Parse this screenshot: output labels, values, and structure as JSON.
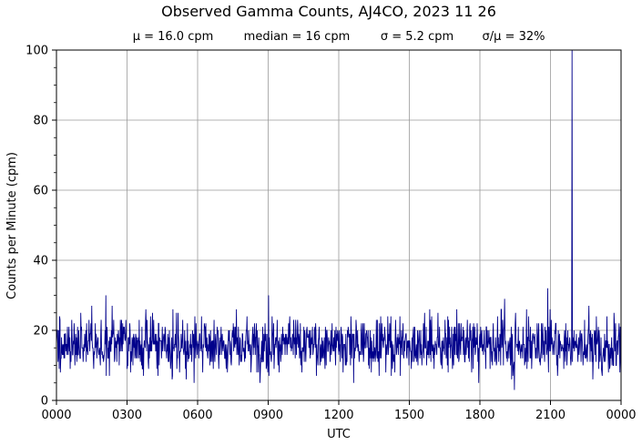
{
  "chart_data": {
    "type": "line",
    "title": "Observed Gamma Counts, AJ4CO, 2023 11 26",
    "subtitle": {
      "mean": "μ = 16.0 cpm",
      "median": "median = 16 cpm",
      "sigma": "σ = 5.2 cpm",
      "cv": "σ/μ = 32%"
    },
    "xlabel": "UTC",
    "ylabel": "Counts per Minute (cpm)",
    "ylim": [
      0,
      100
    ],
    "xlim_minutes": [
      0,
      1440
    ],
    "x_ticks": [
      {
        "minute": 0,
        "label": "0000"
      },
      {
        "minute": 180,
        "label": "0300"
      },
      {
        "minute": 360,
        "label": "0600"
      },
      {
        "minute": 540,
        "label": "0900"
      },
      {
        "minute": 720,
        "label": "1200"
      },
      {
        "minute": 900,
        "label": "1500"
      },
      {
        "minute": 1080,
        "label": "1800"
      },
      {
        "minute": 1260,
        "label": "2100"
      },
      {
        "minute": 1440,
        "label": "0000"
      }
    ],
    "y_ticks": [
      {
        "value": 0,
        "label": "0"
      },
      {
        "value": 20,
        "label": "20"
      },
      {
        "value": 40,
        "label": "40"
      },
      {
        "value": 60,
        "label": "60"
      },
      {
        "value": 80,
        "label": "80"
      },
      {
        "value": 100,
        "label": "100"
      }
    ],
    "y_minor_step": 5,
    "grid": true,
    "series": [
      {
        "color": "#00008b",
        "sampling": "1 value per minute, 1440 values",
        "values": []
      }
    ],
    "notable_points": [
      {
        "minute": 1253,
        "value": 32
      },
      {
        "minute": 1315,
        "value": 100
      },
      {
        "minute": 126,
        "value": 30
      },
      {
        "minute": 541,
        "value": 30
      },
      {
        "minute": 1143,
        "value": 29
      },
      {
        "minute": 1168,
        "value": 3
      },
      {
        "minute": 351,
        "value": 5
      }
    ]
  }
}
